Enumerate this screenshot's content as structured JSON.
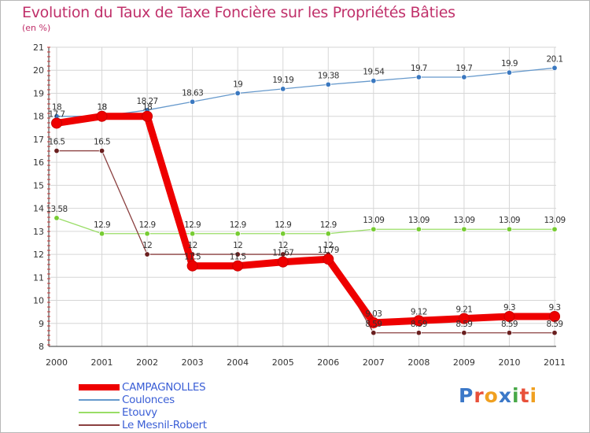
{
  "header": {
    "title": "Evolution du Taux de Taxe Foncière sur les Propriétés Bâties",
    "unit": "(en %)"
  },
  "logo": {
    "letters": [
      {
        "ch": "P",
        "color": "#3b78c8"
      },
      {
        "ch": "r",
        "color": "#e8503a"
      },
      {
        "ch": "o",
        "color": "#f0a020"
      },
      {
        "ch": "x",
        "color": "#3b78c8"
      },
      {
        "ch": "i",
        "color": "#48a848"
      },
      {
        "ch": "t",
        "color": "#e8503a"
      },
      {
        "ch": "i",
        "color": "#f0a020"
      }
    ]
  },
  "chart_data": {
    "type": "line",
    "title": "Evolution du Taux de Taxe Foncière sur les Propriétés Bâties",
    "ylabel": "(en %)",
    "xlabel": "",
    "categories": [
      "2000",
      "2001",
      "2002",
      "2003",
      "2004",
      "2005",
      "2006",
      "2007",
      "2008",
      "2009",
      "2010",
      "2011"
    ],
    "ylim": [
      8,
      21
    ],
    "yticks": [
      "8",
      "9",
      "10",
      "11",
      "12",
      "13",
      "14",
      "15",
      "16",
      "17",
      "18",
      "19",
      "20",
      "21"
    ],
    "grid": true,
    "series": [
      {
        "name": "CAMPAGNOLLES",
        "color": "#ee0000",
        "weight": "bold",
        "values": [
          17.7,
          18,
          18,
          11.5,
          11.5,
          11.67,
          11.79,
          9.03,
          9.12,
          9.21,
          9.3,
          9.3
        ],
        "labels": [
          "17.7",
          "18",
          "18",
          "11.5",
          "11.5",
          "11.67",
          "11.79",
          "9.03",
          "9.12",
          "9.21",
          "9.3",
          "9.3"
        ]
      },
      {
        "name": "Coulonces",
        "color": "#6699cc",
        "dot": "#3a78c0",
        "weight": "thin",
        "values": [
          18,
          18,
          18.27,
          18.63,
          19,
          19.19,
          19.38,
          19.54,
          19.7,
          19.7,
          19.9,
          20.1
        ],
        "labels": [
          "18",
          "18",
          "18.27",
          "18.63",
          "19",
          "19.19",
          "19.38",
          "19.54",
          "19.7",
          "19.7",
          "19.9",
          "20.1"
        ]
      },
      {
        "name": "Etouvy",
        "color": "#99dd66",
        "dot": "#77cc33",
        "weight": "thin",
        "values": [
          13.58,
          12.9,
          12.9,
          12.9,
          12.9,
          12.9,
          12.9,
          13.09,
          13.09,
          13.09,
          13.09,
          13.09
        ],
        "labels": [
          "13.58",
          "12.9",
          "12.9",
          "12.9",
          "12.9",
          "12.9",
          "12.9",
          "13.09",
          "13.09",
          "13.09",
          "13.09",
          "13.09"
        ]
      },
      {
        "name": "Le Mesnil-Robert",
        "color": "#8b4040",
        "dot": "#6a1f1f",
        "weight": "thin",
        "values": [
          16.5,
          16.5,
          12,
          12,
          12,
          12,
          12,
          8.59,
          8.59,
          8.59,
          8.59,
          8.59
        ],
        "labels": [
          "16.5",
          "16.5",
          "12",
          "12",
          "12",
          "12",
          "12",
          "8.59",
          "8.59",
          "8.59",
          "8.59",
          "8.59"
        ]
      }
    ]
  }
}
